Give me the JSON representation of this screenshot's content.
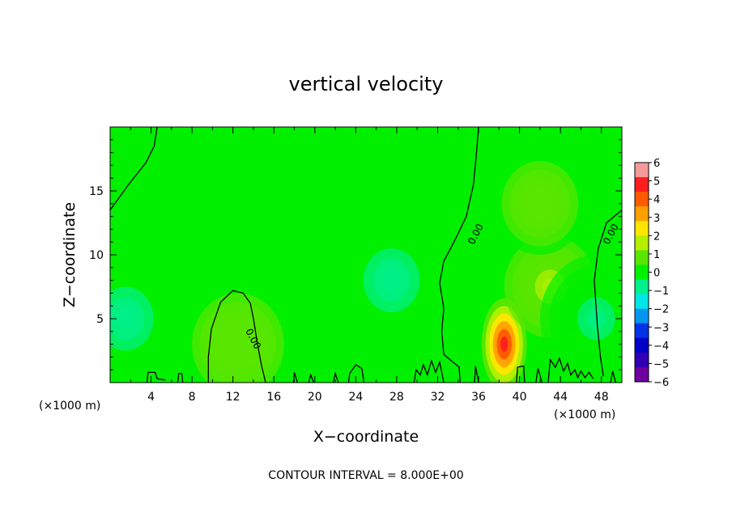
{
  "chart_data": {
    "type": "heatmap",
    "title": "vertical velocity",
    "xlabel": "X−coordinate",
    "ylabel": "Z−coordinate",
    "x_unit_left": "(×1000 m)",
    "x_unit_right": "(×1000 m)",
    "xlim": [
      0,
      50
    ],
    "ylim": [
      0,
      20
    ],
    "x_ticks": [
      4,
      8,
      12,
      16,
      20,
      24,
      28,
      32,
      36,
      40,
      44,
      48
    ],
    "y_ticks": [
      5,
      10,
      15
    ],
    "footnote": "CONTOUR INTERVAL = 8.000E+00",
    "contour_label": "0.00",
    "colorbar": {
      "ticks": [
        "6",
        "5",
        "4",
        "3",
        "2",
        "1",
        "0",
        "−1",
        "−2",
        "−3",
        "−4",
        "−5",
        "−6"
      ],
      "colors": [
        "#f59a9a",
        "#ff1e1e",
        "#ff5a00",
        "#ffa000",
        "#ffe600",
        "#b4f000",
        "#5ae600",
        "#00f000",
        "#00f08c",
        "#00e6e6",
        "#0096f0",
        "#0032e6",
        "#0000c8",
        "#3200b4",
        "#6e00a0"
      ]
    },
    "features": [
      {
        "kind": "updraft",
        "x": 38.5,
        "z": 3.0,
        "w": 5.0
      },
      {
        "kind": "updraft",
        "x": 43.0,
        "z": 7.5,
        "w": 1.5
      },
      {
        "kind": "updraft",
        "x": 12.5,
        "z": 3.0,
        "w": 1.2
      },
      {
        "kind": "updraft",
        "x": 42.0,
        "z": 14.0,
        "w": 0.8
      },
      {
        "kind": "downdraft",
        "x": 1.5,
        "z": 5.0,
        "w": -1.2
      },
      {
        "kind": "downdraft",
        "x": 27.5,
        "z": 8.0,
        "w": -1.0
      },
      {
        "kind": "downdraft",
        "x": 47.5,
        "z": 5.0,
        "w": -0.8
      }
    ],
    "contours_zero": [
      [
        [
          0,
          13.5
        ],
        [
          1.8,
          15.5
        ],
        [
          3.5,
          17.2
        ],
        [
          4.3,
          18.5
        ],
        [
          4.6,
          20
        ]
      ],
      [
        [
          9.6,
          0
        ],
        [
          9.6,
          2.0
        ],
        [
          9.9,
          4.2
        ],
        [
          10.8,
          6.3
        ],
        [
          12.0,
          7.2
        ],
        [
          13.0,
          7.0
        ],
        [
          13.7,
          6.2
        ],
        [
          14.0,
          5.0
        ],
        [
          14.4,
          3.0
        ],
        [
          14.8,
          1.3
        ],
        [
          15.2,
          0
        ]
      ],
      [
        [
          34.2,
          0
        ],
        [
          34.1,
          1.2
        ],
        [
          32.6,
          2.2
        ],
        [
          32.4,
          4.0
        ],
        [
          32.6,
          5.8
        ],
        [
          32.2,
          7.8
        ],
        [
          32.6,
          9.5
        ],
        [
          33.6,
          11.0
        ],
        [
          34.8,
          13.0
        ],
        [
          35.5,
          15.5
        ],
        [
          35.8,
          18.0
        ],
        [
          36.0,
          20
        ]
      ],
      [
        [
          48.2,
          0.5
        ],
        [
          47.9,
          2.0
        ],
        [
          47.6,
          4.5
        ],
        [
          47.3,
          8.0
        ],
        [
          47.7,
          10.5
        ],
        [
          48.5,
          12.5
        ],
        [
          50,
          13.5
        ]
      ]
    ],
    "contours_surface": [
      [
        [
          3.6,
          0
        ],
        [
          3.7,
          0.8
        ],
        [
          4.4,
          0.8
        ],
        [
          4.6,
          0.3
        ],
        [
          5.4,
          0.2
        ]
      ],
      [
        [
          6.6,
          0
        ],
        [
          6.7,
          0.7
        ],
        [
          7.0,
          0.7
        ],
        [
          7.1,
          0
        ]
      ],
      [
        [
          17.9,
          0
        ],
        [
          18.0,
          0.8
        ],
        [
          18.3,
          0
        ]
      ],
      [
        [
          19.4,
          0
        ],
        [
          19.6,
          0.6
        ],
        [
          19.9,
          0
        ]
      ],
      [
        [
          21.8,
          0
        ],
        [
          22.0,
          0.7
        ],
        [
          22.3,
          0
        ]
      ],
      [
        [
          23.3,
          0
        ],
        [
          23.4,
          0.7
        ],
        [
          24.0,
          1.4
        ],
        [
          24.6,
          1.1
        ],
        [
          24.8,
          0
        ]
      ],
      [
        [
          29.7,
          0
        ],
        [
          29.9,
          1.0
        ],
        [
          30.3,
          0.6
        ],
        [
          30.6,
          1.4
        ],
        [
          31.0,
          0.6
        ],
        [
          31.4,
          1.7
        ],
        [
          31.8,
          0.8
        ],
        [
          32.2,
          1.6
        ],
        [
          32.6,
          0
        ]
      ],
      [
        [
          35.6,
          0
        ],
        [
          35.7,
          1.3
        ],
        [
          36.0,
          0
        ]
      ],
      [
        [
          39.7,
          0
        ],
        [
          39.8,
          1.2
        ],
        [
          40.4,
          1.3
        ],
        [
          40.5,
          0
        ]
      ],
      [
        [
          41.6,
          0
        ],
        [
          41.8,
          1.1
        ],
        [
          42.2,
          0
        ]
      ],
      [
        [
          42.8,
          0
        ],
        [
          43.0,
          1.8
        ],
        [
          43.5,
          1.2
        ],
        [
          43.9,
          1.9
        ],
        [
          44.3,
          0.9
        ],
        [
          44.7,
          1.5
        ],
        [
          45.0,
          0.6
        ],
        [
          45.4,
          1.0
        ],
        [
          45.7,
          0.4
        ],
        [
          46.0,
          0.9
        ],
        [
          46.4,
          0.4
        ],
        [
          46.8,
          0.8
        ],
        [
          47.2,
          0.3
        ]
      ],
      [
        [
          48.9,
          0
        ],
        [
          49.1,
          0.9
        ],
        [
          49.4,
          0
        ]
      ]
    ]
  }
}
